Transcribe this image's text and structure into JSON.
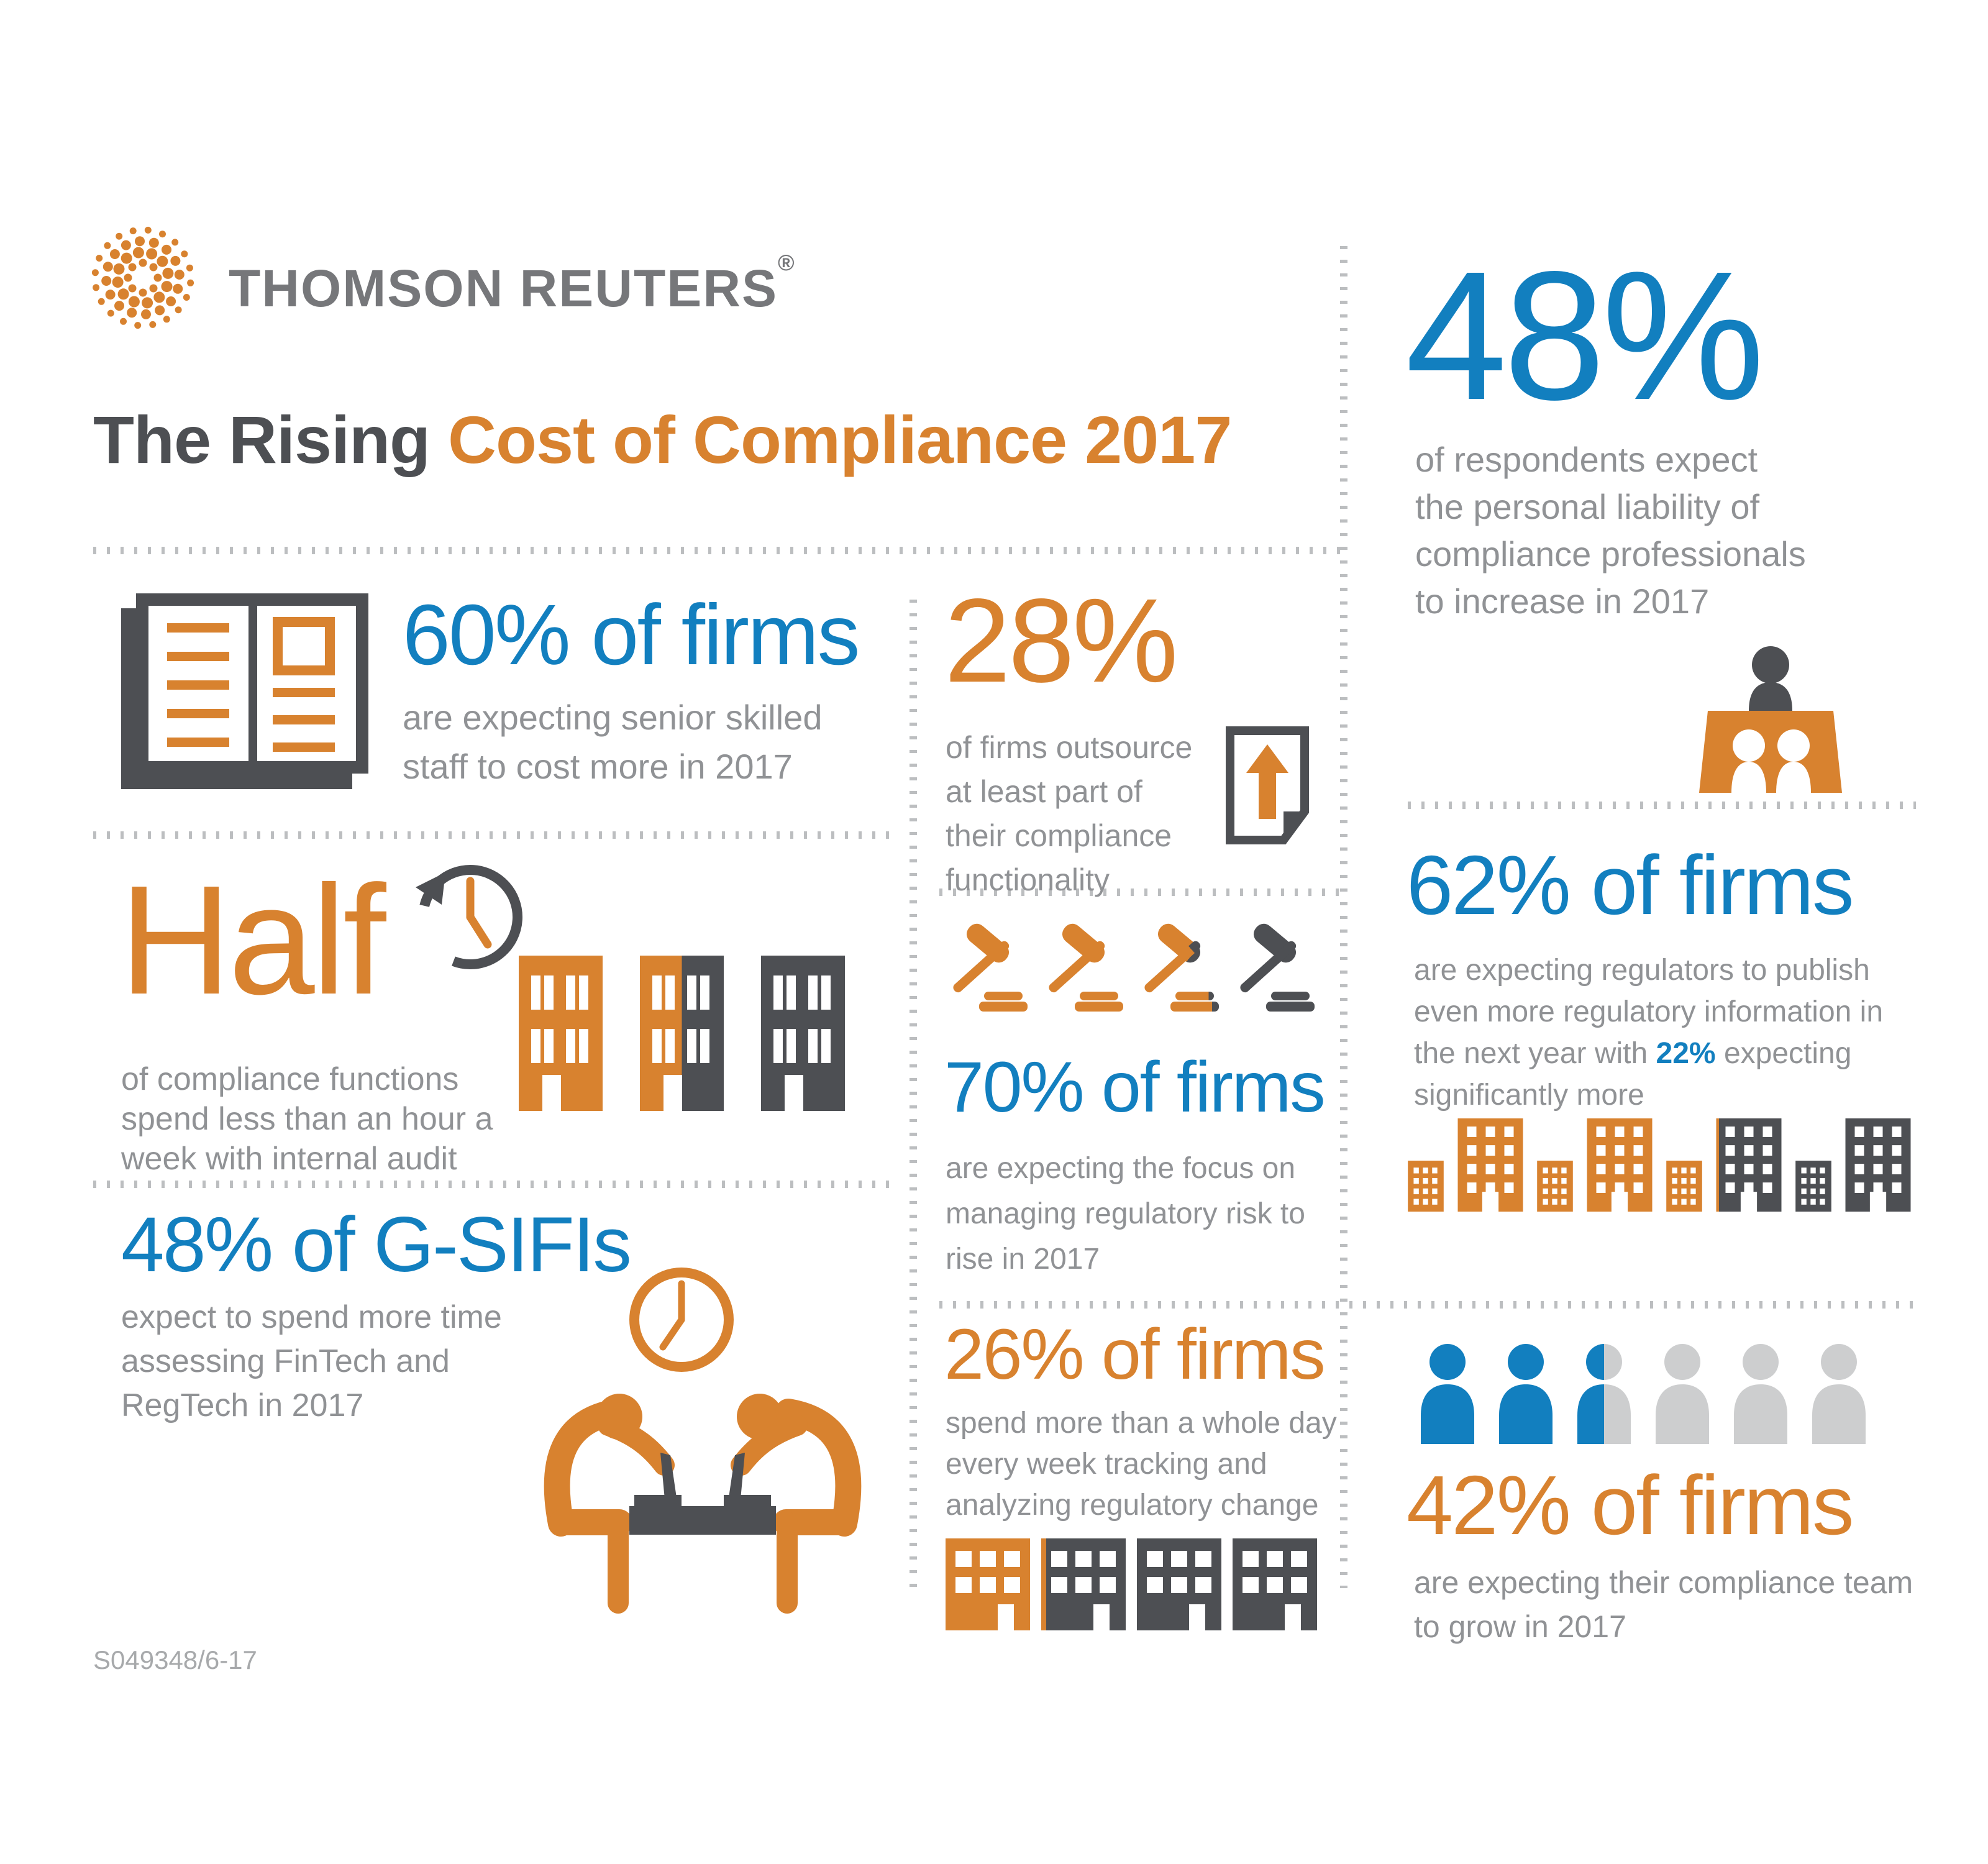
{
  "page": {
    "background": "#FFFFFF"
  },
  "brand": {
    "name": "THOMSON REUTERS",
    "registered_mark": "®",
    "logo_icon": "thomson-reuters-dotted-sphere-logo",
    "logo_color": "#D8822F",
    "text_color": "#76777A"
  },
  "title": {
    "part1": "The Rising ",
    "part2": "Cost of Compliance 2017",
    "part1_color": "#4D4F53",
    "part2_color": "#D8822F"
  },
  "colors": {
    "blue": "#127FBF",
    "orange": "#D8822F",
    "charcoal": "#4D4F53",
    "body_text_gray": "#909295",
    "light_gray": "#CDCECF",
    "dotted_line_gray": "#BCBEC0"
  },
  "sections": {
    "senior_staff_cost": {
      "stat": "60% of firms",
      "stat_color": "blue",
      "description": "are expecting senior skilled\nstaff to cost more in 2017",
      "icon": "open-ledger-book-icon"
    },
    "outsourcing": {
      "stat": "28%",
      "stat_color": "orange",
      "description": "of firms outsource\nat least part of\ntheir compliance\nfunctionality",
      "icon": "document-up-arrow-icon"
    },
    "personal_liability": {
      "stat": "48%",
      "stat_color": "blue",
      "description": "of respondents expect\nthe personal liability of\ncompliance professionals\nto increase in 2017",
      "icon": "judge-bench-people-icon"
    },
    "internal_audit": {
      "stat": "Half",
      "stat_color": "orange",
      "description": "of compliance functions\nspend less than an hour a\nweek with internal audit",
      "icons": [
        "history-clock-icon",
        "three-buildings-icon"
      ]
    },
    "regulatory_risk": {
      "stat": "70% of firms",
      "stat_color": "blue",
      "description": "are expecting the focus on\nmanaging regulatory risk to\nrise in 2017",
      "icon": "four-gavels-icon"
    },
    "regulatory_information": {
      "stat": "62% of firms",
      "stat_color": "blue",
      "description_before": "are expecting regulators to publish\neven more regulatory information in\nthe next year with ",
      "description_highlight": "22%",
      "description_after": " expecting\nsignificantly more",
      "icon": "city-skyline-buildings-icon"
    },
    "fintech_regtech": {
      "stat": "48% of G-SIFIs",
      "stat_color": "blue",
      "description": "expect to spend more time\nassessing FinTech and\nRegTech in 2017",
      "icon": "two-people-meeting-desk-clock-icon"
    },
    "tracking_regulatory_change": {
      "stat": "26% of firms",
      "stat_color": "orange",
      "description": "spend more than a whole day\nevery week tracking and\nanalyzing regulatory change",
      "icon": "four-office-buildings-icon"
    },
    "compliance_team_growth": {
      "stat": "42% of firms",
      "stat_color": "orange",
      "description": "are expecting their compliance team\nto grow in 2017",
      "icon": "six-people-row-icon"
    }
  },
  "footer": {
    "document_code": "S049348/6-17"
  }
}
